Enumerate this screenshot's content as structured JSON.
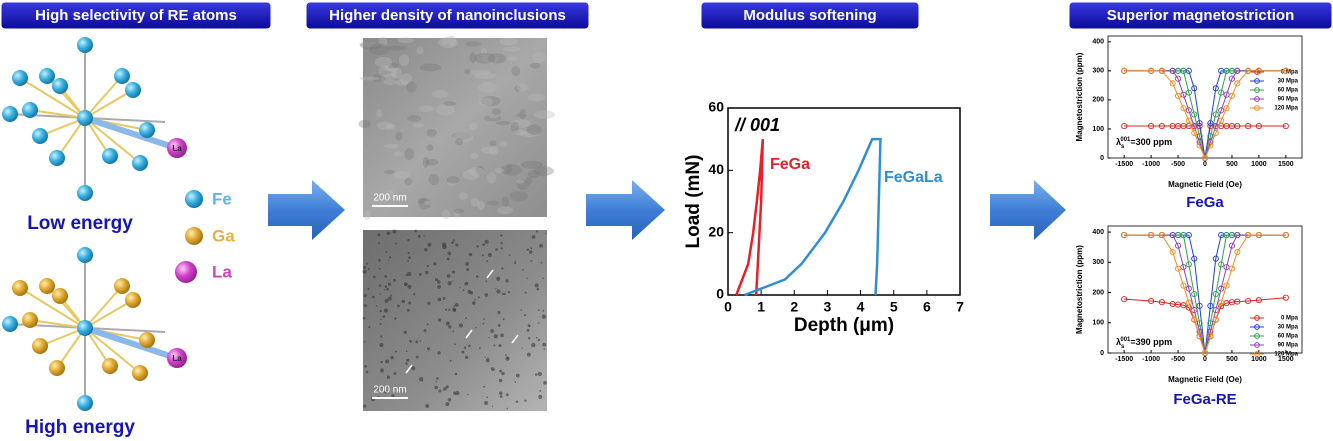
{
  "headers": [
    "High selectivity of RE atoms",
    "Higher density of nanoinclusions",
    "Modulus softening",
    "Superior magnetostriction"
  ],
  "atoms": {
    "low_energy": "Low energy",
    "high_energy": "High energy",
    "cluster_label": "La",
    "legend": [
      "Fe",
      "Ga",
      "La"
    ]
  },
  "micrographs": {
    "scale_bar": "200 nm"
  },
  "chart_data": [
    {
      "type": "line",
      "xlabel": "Depth (μm)",
      "ylabel": "Load (mN)",
      "annotation": "// 001",
      "xlim": [
        0,
        7
      ],
      "xticks": [
        0,
        1,
        2,
        3,
        4,
        5,
        6,
        7
      ],
      "ylim": [
        0,
        60
      ],
      "yticks": [
        0,
        20,
        40,
        60
      ],
      "series": [
        {
          "name": "FeGa",
          "color": "#e8202a",
          "x": [
            0.25,
            0.61,
            0.76,
            0.87,
            0.97,
            1.05,
            1.0,
            0.9,
            0.85
          ],
          "values": [
            0,
            10,
            20,
            30,
            40,
            50,
            30,
            10,
            0
          ]
        },
        {
          "name": "FeGaLa",
          "color": "#2f8fd0",
          "x": [
            0.5,
            1.72,
            2.22,
            2.93,
            3.48,
            3.94,
            4.35,
            4.6,
            4.55,
            4.5,
            4.45
          ],
          "values": [
            0,
            5,
            10,
            20,
            30,
            40,
            50,
            50,
            30,
            10,
            0
          ]
        }
      ]
    },
    {
      "type": "line",
      "marker": "circle",
      "title": "FeGa",
      "xlabel": "Magnetic Field (Oe)",
      "ylabel": "Magnetostriction (ppm)",
      "annotation": {
        "symbol": "λ",
        "sub": "s",
        "sup": "001",
        "text": "=300 ppm"
      },
      "legend": "upper right",
      "xlim": [
        -1800,
        1800
      ],
      "xticks": [
        -1500,
        -1000,
        -500,
        0,
        500,
        1000,
        1500
      ],
      "ylim": [
        0,
        420
      ],
      "yticks": [
        0,
        100,
        200,
        300,
        400
      ],
      "x": [
        -1500,
        -1000,
        -800,
        -600,
        -500,
        -400,
        -300,
        -200,
        -100,
        0,
        100,
        200,
        300,
        400,
        500,
        600,
        800,
        1000,
        1500
      ],
      "series": [
        {
          "name": "0 Mpa",
          "color": "#e02020",
          "values": [
            110,
            110,
            110,
            110,
            110,
            110,
            110,
            110,
            110,
            0,
            110,
            110,
            110,
            110,
            110,
            110,
            110,
            110,
            110
          ]
        },
        {
          "name": "30 Mpa",
          "color": "#2040d0",
          "values": [
            300,
            300,
            300,
            300,
            300,
            300,
            300,
            240,
            120,
            0,
            120,
            240,
            300,
            300,
            300,
            300,
            300,
            300,
            300
          ]
        },
        {
          "name": "60 Mpa",
          "color": "#30a050",
          "values": [
            300,
            300,
            300,
            300,
            300,
            300,
            225,
            150,
            75,
            0,
            75,
            150,
            225,
            300,
            300,
            300,
            300,
            300,
            300
          ]
        },
        {
          "name": "90 Mpa",
          "color": "#9040b0",
          "values": [
            300,
            300,
            300,
            300,
            273,
            218,
            164,
            109,
            55,
            0,
            55,
            109,
            164,
            218,
            273,
            300,
            300,
            300,
            300
          ]
        },
        {
          "name": "120 Mpa",
          "color": "#f08c20",
          "values": [
            300,
            300,
            300,
            257,
            214,
            171,
            129,
            86,
            43,
            0,
            43,
            86,
            129,
            171,
            214,
            257,
            300,
            300,
            300
          ]
        }
      ]
    },
    {
      "type": "line",
      "marker": "circle",
      "title": "FeGa-RE",
      "xlabel": "Magnetic Field (Oe)",
      "ylabel": "Magnetostriction (ppm)",
      "annotation": {
        "symbol": "λ",
        "sub": "s",
        "sup": "001",
        "text": "=390 ppm"
      },
      "legend": "lower right",
      "xlim": [
        -1800,
        1800
      ],
      "xticks": [
        -1500,
        -1000,
        -500,
        0,
        500,
        1000,
        1500
      ],
      "ylim": [
        0,
        420
      ],
      "yticks": [
        0,
        100,
        200,
        300,
        400
      ],
      "x": [
        -1500,
        -1000,
        -800,
        -600,
        -500,
        -400,
        -300,
        -200,
        -100,
        0,
        100,
        200,
        300,
        400,
        500,
        600,
        800,
        1000,
        1500
      ],
      "series": [
        {
          "name": "0 Mpa",
          "color": "#e02020",
          "values": [
            178,
            172,
            168,
            162,
            160,
            158,
            150,
            110,
            55,
            0,
            55,
            110,
            155,
            165,
            168,
            170,
            172,
            175,
            183
          ]
        },
        {
          "name": "30 Mpa",
          "color": "#2040d0",
          "values": [
            390,
            390,
            390,
            390,
            390,
            390,
            390,
            312,
            156,
            0,
            156,
            312,
            390,
            390,
            390,
            390,
            390,
            390,
            390
          ]
        },
        {
          "name": "60 Mpa",
          "color": "#30a050",
          "values": [
            390,
            390,
            390,
            390,
            390,
            390,
            293,
            195,
            98,
            0,
            98,
            195,
            293,
            390,
            390,
            390,
            390,
            390,
            390
          ]
        },
        {
          "name": "90 Mpa",
          "color": "#9040b0",
          "values": [
            390,
            390,
            390,
            390,
            355,
            284,
            213,
            142,
            71,
            0,
            71,
            142,
            213,
            284,
            355,
            390,
            390,
            390,
            390
          ]
        },
        {
          "name": "120 Mpa",
          "color": "#f08c20",
          "values": [
            390,
            390,
            390,
            334,
            279,
            223,
            167,
            111,
            56,
            0,
            56,
            111,
            167,
            223,
            279,
            334,
            390,
            390,
            390
          ]
        }
      ]
    }
  ]
}
